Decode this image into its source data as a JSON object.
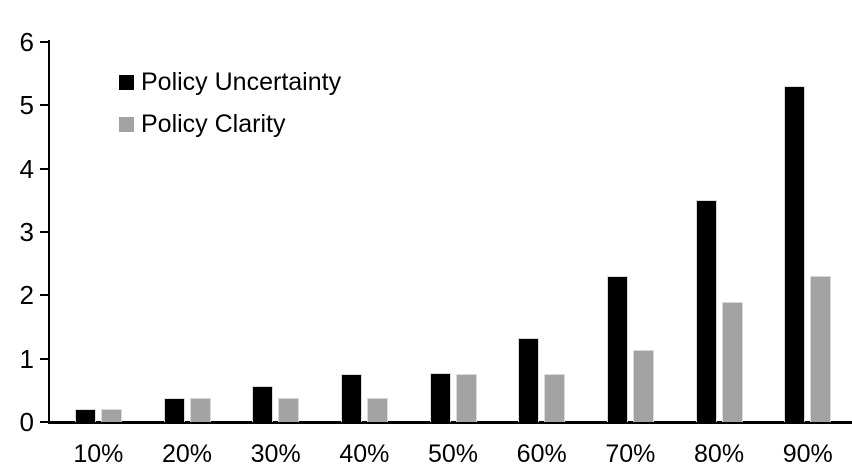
{
  "chart_data": {
    "type": "bar",
    "title": "",
    "categories": [
      "10%",
      "20%",
      "30%",
      "40%",
      "50%",
      "60%",
      "70%",
      "80%",
      "90%"
    ],
    "series": [
      {
        "name": "Policy Uncertainty",
        "color": "#000000",
        "values": [
          0.2,
          0.38,
          0.57,
          0.75,
          0.77,
          1.32,
          2.3,
          3.5,
          5.3
        ]
      },
      {
        "name": "Policy Clarity",
        "color": "#a3a3a3",
        "values": [
          0.2,
          0.38,
          0.38,
          0.38,
          0.76,
          0.76,
          1.13,
          1.9,
          2.3
        ]
      }
    ],
    "xlabel": "",
    "ylabel": "",
    "ylim": [
      0,
      6
    ],
    "yticks": [
      0,
      1,
      2,
      3,
      4,
      5,
      6
    ],
    "grid": false,
    "legend_position": "top-left-inside",
    "bar_border_color": "#d9d9d9",
    "axis_color": "#000000"
  }
}
